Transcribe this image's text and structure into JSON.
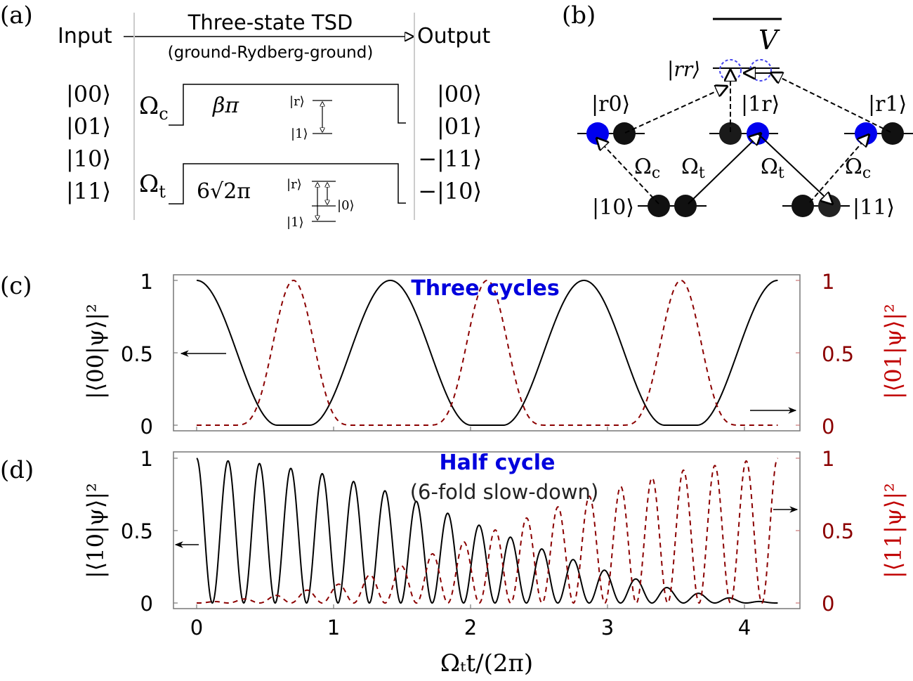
{
  "panel_a": {
    "label": "(a)",
    "input": "Input",
    "output": "Output",
    "title": "Three-state TSD",
    "subtitle": "(ground-Rydberg-ground)",
    "inputs": [
      "|00⟩",
      "|01⟩",
      "|10⟩",
      "|11⟩"
    ],
    "outputs": [
      "|00⟩",
      "|01⟩",
      "−|11⟩",
      "−|10⟩"
    ],
    "pulse_c": {
      "symbol": "Ω",
      "sub": "c",
      "area": "βπ",
      "upper": "|r⟩",
      "lower": "|1⟩"
    },
    "pulse_t": {
      "symbol": "Ω",
      "sub": "t",
      "area": "6√2π",
      "upper": "|r⟩",
      "middle": "|0⟩",
      "lower": "|1⟩"
    }
  },
  "panel_b": {
    "label": "(b)",
    "V": "V",
    "rr": "|rr⟩",
    "r0": "|r0⟩",
    "1r": "|1r⟩",
    "r1": "|r1⟩",
    "s10": "|10⟩",
    "s11": "|11⟩",
    "omega_c": "Ω",
    "sub_c": "c",
    "omega_t": "Ω",
    "sub_t": "t",
    "colors": {
      "rydberg_atom": "#0000ee",
      "ground_atom": "#111111",
      "blockade_circle": "#4444ee"
    }
  },
  "chart_data": [
    {
      "panel": "(c)",
      "type": "line",
      "annotation": "Three cycles",
      "annotation_color": "#0000dd",
      "ylabel_left": "|⟨00|ψ⟩|²",
      "ylabel_right": "|⟨01|ψ⟩|²",
      "xlim": [
        -0.16,
        4.4
      ],
      "ylim": [
        0,
        1
      ],
      "yticks": [
        "0",
        "0.5",
        "1"
      ],
      "x_max": 4.243,
      "series": [
        {
          "axis": "left",
          "color": "#000000",
          "style": "solid",
          "peaks_x": [
            0,
            1.414,
            2.828,
            4.243
          ],
          "peak_halfwidth": 0.59,
          "exponent": 1
        },
        {
          "axis": "right",
          "color": "#8b0000",
          "style": "dashed",
          "peaks_x": [
            0.707,
            2.121,
            3.536
          ],
          "peak_halfwidth": 0.45,
          "exponent": 2
        }
      ]
    },
    {
      "panel": "(d)",
      "type": "line",
      "annotation": "Half cycle",
      "annotation_color": "#0000dd",
      "annotation2": "(6-fold slow-down)",
      "ylabel_left": "|⟨10|ψ⟩|²",
      "ylabel_right": "|⟨11|ψ⟩|²",
      "xlabel": "Ωₜt/(2π)",
      "xlim": [
        -0.16,
        4.4
      ],
      "ylim": [
        0,
        1
      ],
      "xticks": [
        "0",
        "1",
        "2",
        "3",
        "4"
      ],
      "yticks": [
        "0",
        "0.5",
        "1"
      ],
      "x_max": 4.243,
      "oscillation_period": 0.2293,
      "envelope": {
        "x": [
          0,
          0.5,
          1.0,
          1.5,
          2.0,
          2.5,
          3.0,
          3.5,
          4.0,
          4.243
        ],
        "amplitude_10": [
          1,
          0.96,
          0.88,
          0.74,
          0.56,
          0.38,
          0.22,
          0.09,
          0.02,
          0
        ]
      },
      "series": [
        {
          "axis": "left",
          "color": "#000000",
          "style": "solid",
          "state": "10"
        },
        {
          "axis": "right",
          "color": "#8b0000",
          "style": "dashed",
          "state": "11"
        }
      ]
    }
  ],
  "labels": {
    "c": "(c)",
    "d": "(d)"
  }
}
